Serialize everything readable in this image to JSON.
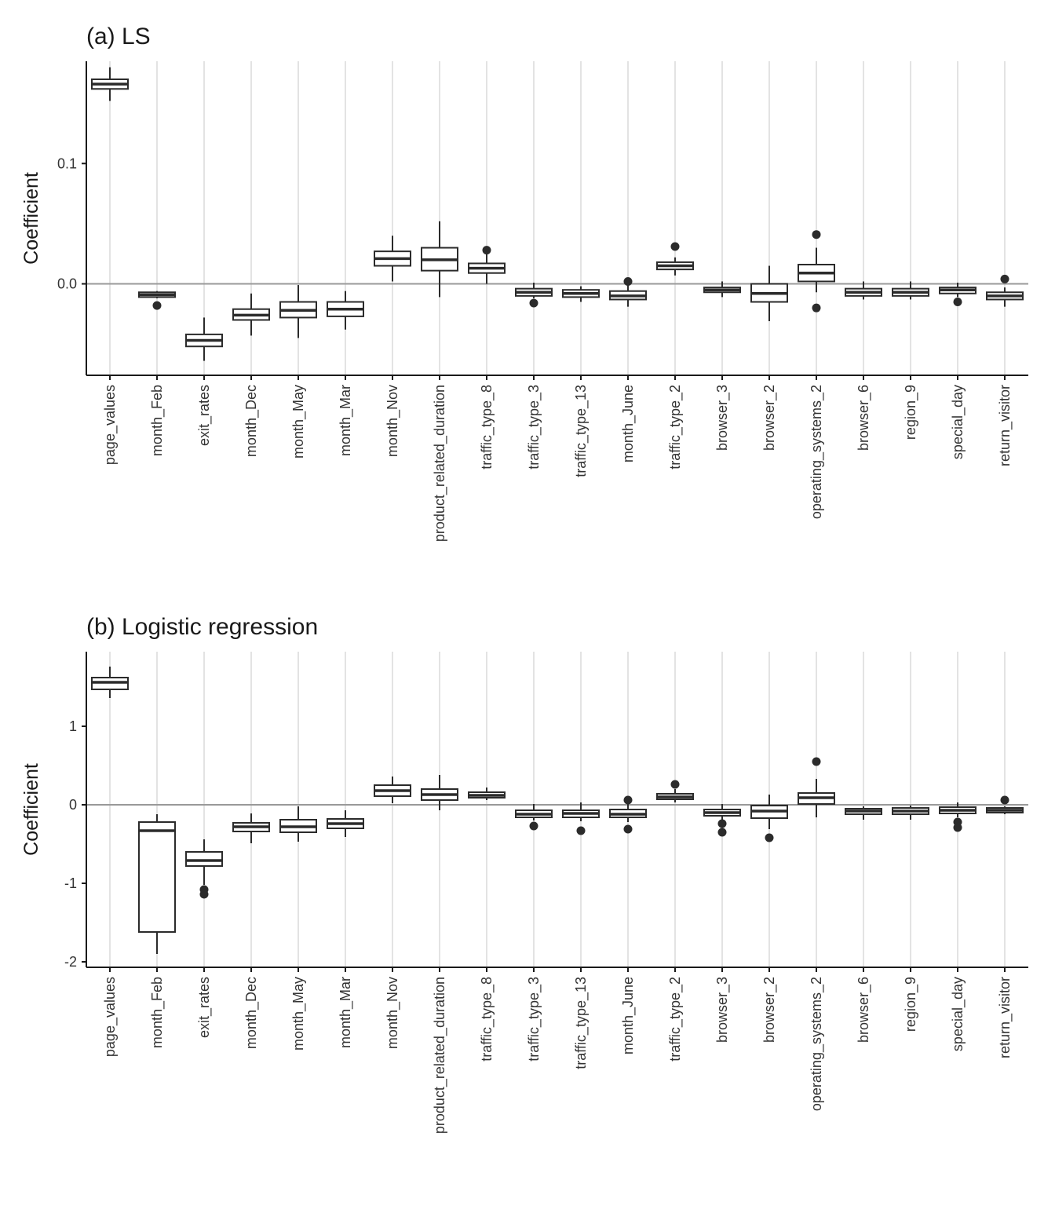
{
  "colors": {
    "background": "#ffffff",
    "box_outline": "#2b2b2b",
    "box_fill": "#ffffff",
    "gridline": "#e3e3e3",
    "zero_line": "#999999",
    "axis": "#1a1a1a",
    "text": "#333333",
    "title": "#1a1a1a"
  },
  "chart_data": [
    {
      "type": "boxplot",
      "title": "(a) LS",
      "ylabel": "Coefficient",
      "xlabel": "",
      "ylim": [
        -0.076,
        0.185
      ],
      "yticks": [
        0.0,
        0.1
      ],
      "ytick_labels": [
        "0.0",
        "0.1"
      ],
      "reference_line": 0,
      "grid": "vertical-major",
      "categories": [
        "page_values",
        "month_Feb",
        "exit_rates",
        "month_Dec",
        "month_May",
        "month_Mar",
        "month_Nov",
        "product_related_duration",
        "traffic_type_8",
        "traffic_type_3",
        "traffic_type_13",
        "month_June",
        "traffic_type_2",
        "browser_3",
        "browser_2",
        "operating_systems_2",
        "browser_6",
        "region_9",
        "special_day",
        "return_visitor"
      ],
      "boxes": [
        {
          "whisker_low": 0.152,
          "q1": 0.162,
          "median": 0.166,
          "q3": 0.17,
          "whisker_high": 0.18,
          "outliers": []
        },
        {
          "whisker_low": -0.012,
          "q1": -0.011,
          "median": -0.009,
          "q3": -0.007,
          "whisker_high": -0.006,
          "outliers": [
            -0.018
          ]
        },
        {
          "whisker_low": -0.064,
          "q1": -0.052,
          "median": -0.047,
          "q3": -0.042,
          "whisker_high": -0.028,
          "outliers": []
        },
        {
          "whisker_low": -0.043,
          "q1": -0.03,
          "median": -0.026,
          "q3": -0.021,
          "whisker_high": -0.008,
          "outliers": []
        },
        {
          "whisker_low": -0.045,
          "q1": -0.028,
          "median": -0.022,
          "q3": -0.015,
          "whisker_high": -0.001,
          "outliers": []
        },
        {
          "whisker_low": -0.038,
          "q1": -0.027,
          "median": -0.021,
          "q3": -0.015,
          "whisker_high": -0.006,
          "outliers": []
        },
        {
          "whisker_low": 0.002,
          "q1": 0.015,
          "median": 0.021,
          "q3": 0.027,
          "whisker_high": 0.04,
          "outliers": []
        },
        {
          "whisker_low": -0.011,
          "q1": 0.011,
          "median": 0.02,
          "q3": 0.03,
          "whisker_high": 0.052,
          "outliers": []
        },
        {
          "whisker_low": 0.0,
          "q1": 0.009,
          "median": 0.013,
          "q3": 0.017,
          "whisker_high": 0.026,
          "outliers": [
            0.028
          ]
        },
        {
          "whisker_low": -0.012,
          "q1": -0.01,
          "median": -0.007,
          "q3": -0.004,
          "whisker_high": 0.001,
          "outliers": [
            -0.016
          ]
        },
        {
          "whisker_low": -0.015,
          "q1": -0.011,
          "median": -0.008,
          "q3": -0.005,
          "whisker_high": -0.002,
          "outliers": []
        },
        {
          "whisker_low": -0.019,
          "q1": -0.013,
          "median": -0.01,
          "q3": -0.006,
          "whisker_high": 0.0,
          "outliers": [
            0.002
          ]
        },
        {
          "whisker_low": 0.007,
          "q1": 0.012,
          "median": 0.015,
          "q3": 0.018,
          "whisker_high": 0.022,
          "outliers": [
            0.031
          ]
        },
        {
          "whisker_low": -0.011,
          "q1": -0.007,
          "median": -0.005,
          "q3": -0.003,
          "whisker_high": 0.002,
          "outliers": []
        },
        {
          "whisker_low": -0.031,
          "q1": -0.015,
          "median": -0.008,
          "q3": 0.0,
          "whisker_high": 0.015,
          "outliers": []
        },
        {
          "whisker_low": -0.007,
          "q1": 0.002,
          "median": 0.009,
          "q3": 0.016,
          "whisker_high": 0.03,
          "outliers": [
            0.041,
            -0.02
          ]
        },
        {
          "whisker_low": -0.013,
          "q1": -0.01,
          "median": -0.007,
          "q3": -0.004,
          "whisker_high": 0.002,
          "outliers": []
        },
        {
          "whisker_low": -0.013,
          "q1": -0.01,
          "median": -0.007,
          "q3": -0.004,
          "whisker_high": 0.002,
          "outliers": []
        },
        {
          "whisker_low": -0.011,
          "q1": -0.008,
          "median": -0.005,
          "q3": -0.003,
          "whisker_high": 0.001,
          "outliers": [
            -0.015
          ]
        },
        {
          "whisker_low": -0.019,
          "q1": -0.013,
          "median": -0.01,
          "q3": -0.007,
          "whisker_high": -0.003,
          "outliers": [
            0.004
          ]
        }
      ]
    },
    {
      "type": "boxplot",
      "title": "(b) Logistic regression",
      "ylabel": "Coefficient",
      "xlabel": "",
      "ylim": [
        -2.07,
        1.95
      ],
      "yticks": [
        -2,
        -1,
        0,
        1
      ],
      "ytick_labels": [
        "-2",
        "-1",
        "0",
        "1"
      ],
      "reference_line": 0,
      "grid": "vertical-major",
      "categories": [
        "page_values",
        "month_Feb",
        "exit_rates",
        "month_Dec",
        "month_May",
        "month_Mar",
        "month_Nov",
        "product_related_duration",
        "traffic_type_8",
        "traffic_type_3",
        "traffic_type_13",
        "month_June",
        "traffic_type_2",
        "browser_3",
        "browser_2",
        "operating_systems_2",
        "browser_6",
        "region_9",
        "special_day",
        "return_visitor"
      ],
      "boxes": [
        {
          "whisker_low": 1.36,
          "q1": 1.47,
          "median": 1.56,
          "q3": 1.62,
          "whisker_high": 1.76,
          "outliers": []
        },
        {
          "whisker_low": -1.9,
          "q1": -1.62,
          "median": -0.33,
          "q3": -0.22,
          "whisker_high": -0.12,
          "outliers": []
        },
        {
          "whisker_low": -1.02,
          "q1": -0.78,
          "median": -0.71,
          "q3": -0.6,
          "whisker_high": -0.44,
          "outliers": [
            -1.08,
            -1.14
          ]
        },
        {
          "whisker_low": -0.49,
          "q1": -0.34,
          "median": -0.28,
          "q3": -0.23,
          "whisker_high": -0.11,
          "outliers": []
        },
        {
          "whisker_low": -0.47,
          "q1": -0.35,
          "median": -0.28,
          "q3": -0.19,
          "whisker_high": -0.02,
          "outliers": []
        },
        {
          "whisker_low": -0.41,
          "q1": -0.3,
          "median": -0.24,
          "q3": -0.18,
          "whisker_high": -0.07,
          "outliers": []
        },
        {
          "whisker_low": 0.02,
          "q1": 0.11,
          "median": 0.18,
          "q3": 0.25,
          "whisker_high": 0.36,
          "outliers": []
        },
        {
          "whisker_low": -0.07,
          "q1": 0.06,
          "median": 0.13,
          "q3": 0.2,
          "whisker_high": 0.38,
          "outliers": []
        },
        {
          "whisker_low": 0.06,
          "q1": 0.09,
          "median": 0.12,
          "q3": 0.16,
          "whisker_high": 0.22,
          "outliers": []
        },
        {
          "whisker_low": -0.2,
          "q1": -0.16,
          "median": -0.12,
          "q3": -0.07,
          "whisker_high": 0.01,
          "outliers": [
            -0.27
          ]
        },
        {
          "whisker_low": -0.21,
          "q1": -0.16,
          "median": -0.11,
          "q3": -0.07,
          "whisker_high": 0.03,
          "outliers": [
            -0.33
          ]
        },
        {
          "whisker_low": -0.22,
          "q1": -0.16,
          "median": -0.12,
          "q3": -0.06,
          "whisker_high": 0.02,
          "outliers": [
            0.06,
            -0.31
          ]
        },
        {
          "whisker_low": 0.03,
          "q1": 0.07,
          "median": 0.1,
          "q3": 0.14,
          "whisker_high": 0.2,
          "outliers": [
            0.26
          ]
        },
        {
          "whisker_low": -0.22,
          "q1": -0.14,
          "median": -0.1,
          "q3": -0.06,
          "whisker_high": 0.01,
          "outliers": [
            -0.24,
            -0.35
          ]
        },
        {
          "whisker_low": -0.31,
          "q1": -0.17,
          "median": -0.08,
          "q3": -0.01,
          "whisker_high": 0.13,
          "outliers": [
            -0.42
          ]
        },
        {
          "whisker_low": -0.16,
          "q1": 0.01,
          "median": 0.09,
          "q3": 0.15,
          "whisker_high": 0.33,
          "outliers": [
            0.55
          ]
        },
        {
          "whisker_low": -0.19,
          "q1": -0.12,
          "median": -0.08,
          "q3": -0.05,
          "whisker_high": -0.02,
          "outliers": []
        },
        {
          "whisker_low": -0.19,
          "q1": -0.12,
          "median": -0.08,
          "q3": -0.04,
          "whisker_high": -0.01,
          "outliers": []
        },
        {
          "whisker_low": -0.16,
          "q1": -0.11,
          "median": -0.07,
          "q3": -0.03,
          "whisker_high": 0.03,
          "outliers": [
            -0.22,
            -0.29
          ]
        },
        {
          "whisker_low": -0.12,
          "q1": -0.1,
          "median": -0.07,
          "q3": -0.04,
          "whisker_high": -0.02,
          "outliers": [
            0.06
          ]
        }
      ]
    }
  ]
}
